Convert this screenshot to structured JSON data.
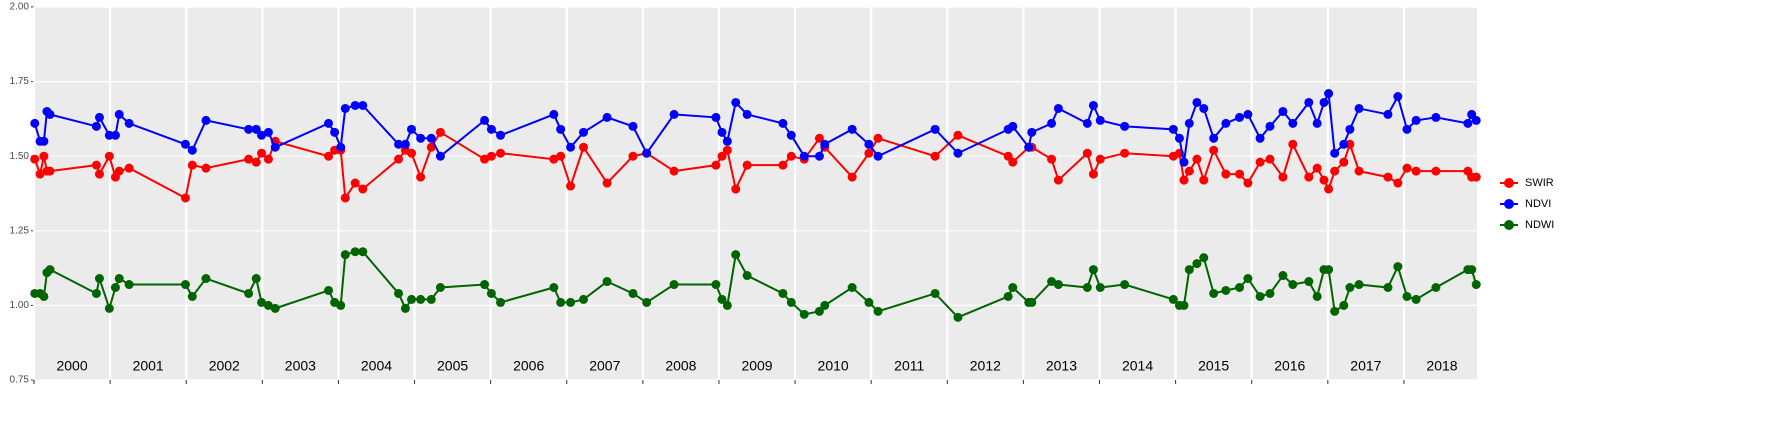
{
  "chart_data": {
    "type": "line",
    "x": [
      2000.01,
      2000.08,
      2000.13,
      2000.17,
      2000.21,
      2000.82,
      2000.86,
      2000.99,
      2001.07,
      2001.12,
      2001.25,
      2001.99,
      2002.08,
      2002.26,
      2002.82,
      2002.92,
      2002.99,
      2003.08,
      2003.17,
      2003.87,
      2003.95,
      2004.03,
      2004.09,
      2004.22,
      2004.32,
      2004.79,
      2004.88,
      2004.96,
      2005.08,
      2005.22,
      2005.34,
      2005.92,
      2006.01,
      2006.13,
      2006.83,
      2006.92,
      2007.05,
      2007.22,
      2007.53,
      2007.87,
      2008.05,
      2008.41,
      2008.96,
      2009.04,
      2009.11,
      2009.22,
      2009.37,
      2009.84,
      2009.95,
      2010.12,
      2010.32,
      2010.39,
      2010.75,
      2010.97,
      2011.09,
      2011.84,
      2012.14,
      2012.8,
      2012.86,
      2013.07,
      2013.11,
      2013.37,
      2013.46,
      2013.84,
      2013.92,
      2014.01,
      2014.33,
      2014.97,
      2015.05,
      2015.11,
      2015.18,
      2015.28,
      2015.37,
      2015.5,
      2015.66,
      2015.84,
      2015.95,
      2016.11,
      2016.24,
      2016.41,
      2016.54,
      2016.75,
      2016.86,
      2016.95,
      2017.01,
      2017.09,
      2017.21,
      2017.29,
      2017.41,
      2017.79,
      2017.92,
      2018.04,
      2018.16,
      2018.42,
      2018.84,
      2018.89,
      2018.95
    ],
    "series": [
      {
        "name": "SWIR",
        "color": "#ff0000",
        "values": [
          1.49,
          1.44,
          1.5,
          1.45,
          1.45,
          1.47,
          1.44,
          1.5,
          1.43,
          1.45,
          1.46,
          1.36,
          1.47,
          1.46,
          1.49,
          1.48,
          1.51,
          1.49,
          1.55,
          1.5,
          1.52,
          1.52,
          1.36,
          1.41,
          1.39,
          1.49,
          1.52,
          1.51,
          1.43,
          1.53,
          1.58,
          1.49,
          1.5,
          1.51,
          1.49,
          1.5,
          1.4,
          1.53,
          1.41,
          1.5,
          1.51,
          1.45,
          1.47,
          1.5,
          1.52,
          1.39,
          1.47,
          1.47,
          1.5,
          1.49,
          1.56,
          1.53,
          1.43,
          1.51,
          1.56,
          1.5,
          1.57,
          1.5,
          1.48,
          1.53,
          1.53,
          1.49,
          1.42,
          1.51,
          1.44,
          1.49,
          1.51,
          1.5,
          1.51,
          1.42,
          1.45,
          1.49,
          1.42,
          1.52,
          1.44,
          1.44,
          1.41,
          1.48,
          1.49,
          1.43,
          1.54,
          1.43,
          1.46,
          1.42,
          1.39,
          1.45,
          1.48,
          1.54,
          1.45,
          1.43,
          1.41,
          1.46,
          1.45,
          1.45,
          1.45,
          1.43,
          1.43
        ]
      },
      {
        "name": "NDVI",
        "color": "#0000ff",
        "values": [
          1.61,
          1.55,
          1.55,
          1.65,
          1.64,
          1.6,
          1.63,
          1.57,
          1.57,
          1.64,
          1.61,
          1.54,
          1.52,
          1.62,
          1.59,
          1.59,
          1.57,
          1.58,
          1.53,
          1.61,
          1.58,
          1.53,
          1.66,
          1.67,
          1.67,
          1.54,
          1.54,
          1.59,
          1.56,
          1.56,
          1.5,
          1.62,
          1.59,
          1.57,
          1.64,
          1.59,
          1.53,
          1.58,
          1.63,
          1.6,
          1.51,
          1.64,
          1.63,
          1.58,
          1.55,
          1.68,
          1.64,
          1.61,
          1.57,
          1.5,
          1.5,
          1.54,
          1.59,
          1.54,
          1.5,
          1.59,
          1.51,
          1.59,
          1.6,
          1.53,
          1.58,
          1.61,
          1.66,
          1.61,
          1.67,
          1.62,
          1.6,
          1.59,
          1.56,
          1.48,
          1.61,
          1.68,
          1.66,
          1.56,
          1.61,
          1.63,
          1.64,
          1.56,
          1.6,
          1.65,
          1.61,
          1.68,
          1.61,
          1.68,
          1.71,
          1.51,
          1.54,
          1.59,
          1.66,
          1.64,
          1.7,
          1.59,
          1.62,
          1.63,
          1.61,
          1.64,
          1.62
        ]
      },
      {
        "name": "NDWI",
        "color": "#006400",
        "values": [
          1.04,
          1.04,
          1.03,
          1.11,
          1.12,
          1.04,
          1.09,
          0.99,
          1.06,
          1.09,
          1.07,
          1.07,
          1.03,
          1.09,
          1.04,
          1.09,
          1.01,
          1.0,
          0.99,
          1.05,
          1.01,
          1.0,
          1.17,
          1.18,
          1.18,
          1.04,
          0.99,
          1.02,
          1.02,
          1.02,
          1.06,
          1.07,
          1.04,
          1.01,
          1.06,
          1.01,
          1.01,
          1.02,
          1.08,
          1.04,
          1.01,
          1.07,
          1.07,
          1.02,
          1.0,
          1.17,
          1.1,
          1.04,
          1.01,
          0.97,
          0.98,
          1.0,
          1.06,
          1.01,
          0.98,
          1.04,
          0.96,
          1.03,
          1.06,
          1.01,
          1.01,
          1.08,
          1.07,
          1.06,
          1.12,
          1.06,
          1.07,
          1.02,
          1.0,
          1.0,
          1.12,
          1.14,
          1.16,
          1.04,
          1.05,
          1.06,
          1.09,
          1.03,
          1.04,
          1.1,
          1.07,
          1.08,
          1.03,
          1.12,
          1.12,
          0.98,
          1.0,
          1.06,
          1.07,
          1.06,
          1.13,
          1.03,
          1.02,
          1.06,
          1.12,
          1.12,
          1.07
        ]
      }
    ],
    "xlim": [
      2000,
      2018.96
    ],
    "xticks": [
      {
        "value": 2000.5,
        "label": "2000"
      },
      {
        "value": 2001.5,
        "label": "2001"
      },
      {
        "value": 2002.5,
        "label": "2002"
      },
      {
        "value": 2003.5,
        "label": "2003"
      },
      {
        "value": 2004.5,
        "label": "2004"
      },
      {
        "value": 2005.5,
        "label": "2005"
      },
      {
        "value": 2006.5,
        "label": "2006"
      },
      {
        "value": 2007.5,
        "label": "2007"
      },
      {
        "value": 2008.5,
        "label": "2008"
      },
      {
        "value": 2009.5,
        "label": "2009"
      },
      {
        "value": 2010.5,
        "label": "2010"
      },
      {
        "value": 2011.5,
        "label": "2011"
      },
      {
        "value": 2012.5,
        "label": "2012"
      },
      {
        "value": 2013.5,
        "label": "2013"
      },
      {
        "value": 2014.5,
        "label": "2014"
      },
      {
        "value": 2015.5,
        "label": "2015"
      },
      {
        "value": 2016.5,
        "label": "2016"
      },
      {
        "value": 2017.5,
        "label": "2017"
      },
      {
        "value": 2018.5,
        "label": "2018"
      }
    ],
    "xgrid": [
      2000,
      2001,
      2002,
      2003,
      2004,
      2005,
      2006,
      2007,
      2008,
      2009,
      2010,
      2011,
      2012,
      2013,
      2014,
      2015,
      2016,
      2017,
      2018
    ],
    "ylim": [
      0.75,
      2.0
    ],
    "yticks": [
      0.75,
      {
        "value": 1.0,
        "label": "1.00"
      },
      1.25,
      {
        "value": 1.5,
        "label": "1.50"
      },
      1.75,
      {
        "value": 2.0,
        "label": "2.00"
      }
    ],
    "grid": true
  }
}
